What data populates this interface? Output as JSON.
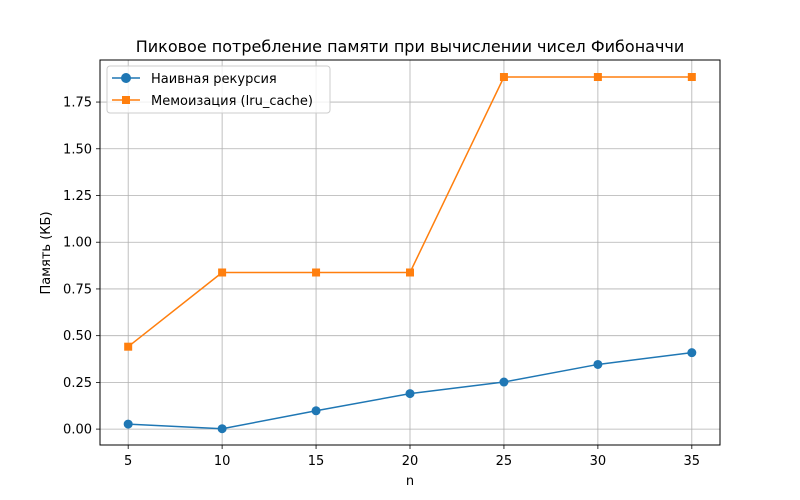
{
  "chart_data": {
    "type": "line",
    "title": "Пиковое потребление памяти при вычислении чисел Фибоначчи",
    "xlabel": "n",
    "ylabel": "Память (КБ)",
    "x": [
      5,
      10,
      15,
      20,
      25,
      30,
      35
    ],
    "xticks": [
      "5",
      "10",
      "15",
      "20",
      "25",
      "30",
      "35"
    ],
    "xlim": [
      3.5,
      36.5
    ],
    "yticks": [
      "0.00",
      "0.25",
      "0.50",
      "0.75",
      "1.00",
      "1.25",
      "1.50",
      "1.75"
    ],
    "ylim": [
      -0.085,
      1.975
    ],
    "grid": true,
    "legend_position": "top-left",
    "series": [
      {
        "name": "Наивная рекурсия",
        "color": "#1f77b4",
        "marker": "circle",
        "values": [
          0.027,
          0.002,
          0.098,
          0.19,
          0.252,
          0.346,
          0.409
        ]
      },
      {
        "name": "Мемоизация (lru_cache)",
        "color": "#ff7f0e",
        "marker": "square",
        "values": [
          0.441,
          0.838,
          0.838,
          0.838,
          1.884,
          1.884,
          1.884
        ]
      }
    ]
  }
}
